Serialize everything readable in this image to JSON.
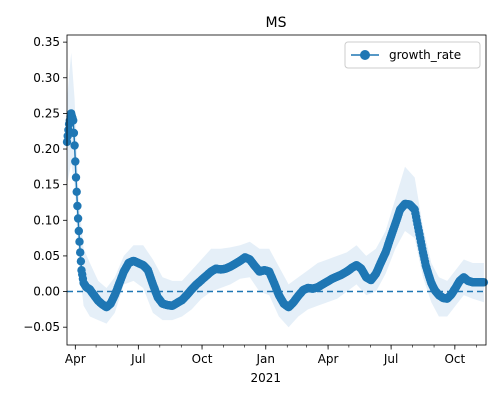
{
  "chart_data": {
    "type": "line",
    "title": "MS",
    "xlabel": "",
    "ylabel": "",
    "ylim": [
      -0.075,
      0.36
    ],
    "x_range": [
      "2020-03-20",
      "2021-11-15"
    ],
    "x_ticks": [
      {
        "date": "2020-04-01",
        "label": "Apr",
        "sublabel": ""
      },
      {
        "date": "2020-07-01",
        "label": "Jul",
        "sublabel": ""
      },
      {
        "date": "2020-10-01",
        "label": "Oct",
        "sublabel": ""
      },
      {
        "date": "2021-01-01",
        "label": "Jan",
        "sublabel": "2021"
      },
      {
        "date": "2021-04-01",
        "label": "Apr",
        "sublabel": ""
      },
      {
        "date": "2021-07-01",
        "label": "Jul",
        "sublabel": ""
      },
      {
        "date": "2021-10-01",
        "label": "Oct",
        "sublabel": ""
      }
    ],
    "y_ticks": [
      -0.05,
      0.0,
      0.05,
      0.1,
      0.15,
      0.2,
      0.25,
      0.3,
      0.35
    ],
    "y_tick_labels": [
      "−0.05",
      "0.00",
      "0.05",
      "0.10",
      "0.15",
      "0.20",
      "0.25",
      "0.30",
      "0.35"
    ],
    "reference_line": {
      "y": 0.0,
      "style": "dashed",
      "color": "#1f77b4"
    },
    "legend": {
      "position": "top-right",
      "entries": [
        "growth_rate"
      ]
    },
    "colors": {
      "series": "#1f77b4",
      "band": "#c6dbef"
    },
    "series": [
      {
        "name": "growth_rate",
        "points": [
          [
            "2020-03-20",
            0.21
          ],
          [
            "2020-03-23",
            0.235
          ],
          [
            "2020-03-26",
            0.25
          ],
          [
            "2020-03-29",
            0.24
          ],
          [
            "2020-03-31",
            0.205
          ],
          [
            "2020-04-02",
            0.16
          ],
          [
            "2020-04-04",
            0.12
          ],
          [
            "2020-04-06",
            0.085
          ],
          [
            "2020-04-08",
            0.055
          ],
          [
            "2020-04-10",
            0.03
          ],
          [
            "2020-04-13",
            0.012
          ],
          [
            "2020-04-17",
            0.006
          ],
          [
            "2020-04-22",
            0.003
          ],
          [
            "2020-04-28",
            -0.005
          ],
          [
            "2020-05-04",
            -0.013
          ],
          [
            "2020-05-10",
            -0.018
          ],
          [
            "2020-05-16",
            -0.022
          ],
          [
            "2020-05-22",
            -0.017
          ],
          [
            "2020-05-28",
            -0.005
          ],
          [
            "2020-06-03",
            0.01
          ],
          [
            "2020-06-10",
            0.028
          ],
          [
            "2020-06-17",
            0.04
          ],
          [
            "2020-06-24",
            0.043
          ],
          [
            "2020-07-01",
            0.04
          ],
          [
            "2020-07-08",
            0.037
          ],
          [
            "2020-07-15",
            0.03
          ],
          [
            "2020-07-22",
            0.01
          ],
          [
            "2020-07-29",
            -0.008
          ],
          [
            "2020-08-05",
            -0.017
          ],
          [
            "2020-08-12",
            -0.019
          ],
          [
            "2020-08-19",
            -0.02
          ],
          [
            "2020-08-26",
            -0.016
          ],
          [
            "2020-09-02",
            -0.012
          ],
          [
            "2020-09-09",
            -0.005
          ],
          [
            "2020-09-16",
            0.003
          ],
          [
            "2020-09-23",
            0.01
          ],
          [
            "2020-09-30",
            0.016
          ],
          [
            "2020-10-07",
            0.022
          ],
          [
            "2020-10-14",
            0.028
          ],
          [
            "2020-10-21",
            0.032
          ],
          [
            "2020-10-28",
            0.031
          ],
          [
            "2020-11-04",
            0.032
          ],
          [
            "2020-11-11",
            0.035
          ],
          [
            "2020-11-18",
            0.039
          ],
          [
            "2020-11-25",
            0.043
          ],
          [
            "2020-12-02",
            0.048
          ],
          [
            "2020-12-09",
            0.045
          ],
          [
            "2020-12-16",
            0.036
          ],
          [
            "2020-12-23",
            0.028
          ],
          [
            "2020-12-30",
            0.03
          ],
          [
            "2021-01-06",
            0.028
          ],
          [
            "2021-01-13",
            0.012
          ],
          [
            "2021-01-20",
            -0.005
          ],
          [
            "2021-01-27",
            -0.017
          ],
          [
            "2021-02-03",
            -0.022
          ],
          [
            "2021-02-10",
            -0.015
          ],
          [
            "2021-02-17",
            -0.006
          ],
          [
            "2021-02-24",
            0.002
          ],
          [
            "2021-03-03",
            0.005
          ],
          [
            "2021-03-10",
            0.004
          ],
          [
            "2021-03-17",
            0.006
          ],
          [
            "2021-03-24",
            0.01
          ],
          [
            "2021-03-31",
            0.014
          ],
          [
            "2021-04-07",
            0.018
          ],
          [
            "2021-04-14",
            0.021
          ],
          [
            "2021-04-21",
            0.024
          ],
          [
            "2021-04-28",
            0.028
          ],
          [
            "2021-05-05",
            0.033
          ],
          [
            "2021-05-12",
            0.037
          ],
          [
            "2021-05-19",
            0.032
          ],
          [
            "2021-05-26",
            0.02
          ],
          [
            "2021-06-02",
            0.016
          ],
          [
            "2021-06-09",
            0.025
          ],
          [
            "2021-06-16",
            0.04
          ],
          [
            "2021-06-23",
            0.055
          ],
          [
            "2021-06-30",
            0.075
          ],
          [
            "2021-07-07",
            0.095
          ],
          [
            "2021-07-14",
            0.115
          ],
          [
            "2021-07-21",
            0.123
          ],
          [
            "2021-07-28",
            0.122
          ],
          [
            "2021-08-04",
            0.115
          ],
          [
            "2021-08-08",
            0.095
          ],
          [
            "2021-08-12",
            0.075
          ],
          [
            "2021-08-16",
            0.055
          ],
          [
            "2021-08-20",
            0.037
          ],
          [
            "2021-08-24",
            0.024
          ],
          [
            "2021-08-28",
            0.012
          ],
          [
            "2021-09-02",
            0.002
          ],
          [
            "2021-09-08",
            -0.005
          ],
          [
            "2021-09-14",
            -0.009
          ],
          [
            "2021-09-20",
            -0.01
          ],
          [
            "2021-09-26",
            -0.004
          ],
          [
            "2021-10-02",
            0.005
          ],
          [
            "2021-10-08",
            0.015
          ],
          [
            "2021-10-14",
            0.02
          ],
          [
            "2021-10-20",
            0.015
          ],
          [
            "2021-10-27",
            0.013
          ],
          [
            "2021-11-03",
            0.013
          ],
          [
            "2021-11-12",
            0.013
          ]
        ],
        "band": [
          [
            "2020-03-20",
            0.15,
            0.27
          ],
          [
            "2020-03-26",
            0.18,
            0.335
          ],
          [
            "2020-03-31",
            0.15,
            0.27
          ],
          [
            "2020-04-06",
            0.04,
            0.13
          ],
          [
            "2020-04-13",
            -0.02,
            0.06
          ],
          [
            "2020-04-22",
            -0.035,
            0.04
          ],
          [
            "2020-05-04",
            -0.04,
            0.015
          ],
          [
            "2020-05-16",
            -0.045,
            0.005
          ],
          [
            "2020-05-28",
            -0.03,
            0.02
          ],
          [
            "2020-06-10",
            0.01,
            0.05
          ],
          [
            "2020-06-24",
            0.015,
            0.065
          ],
          [
            "2020-07-08",
            0.005,
            0.065
          ],
          [
            "2020-07-22",
            -0.03,
            0.045
          ],
          [
            "2020-08-05",
            -0.04,
            0.02
          ],
          [
            "2020-08-19",
            -0.04,
            0.015
          ],
          [
            "2020-09-02",
            -0.035,
            0.015
          ],
          [
            "2020-09-16",
            -0.025,
            0.03
          ],
          [
            "2020-09-30",
            -0.01,
            0.045
          ],
          [
            "2020-10-14",
            0.0,
            0.06
          ],
          [
            "2020-10-28",
            0.005,
            0.06
          ],
          [
            "2020-11-11",
            0.01,
            0.062
          ],
          [
            "2020-11-25",
            0.018,
            0.065
          ],
          [
            "2020-12-09",
            0.02,
            0.07
          ],
          [
            "2020-12-23",
            0.0,
            0.06
          ],
          [
            "2021-01-06",
            -0.005,
            0.06
          ],
          [
            "2021-01-20",
            -0.035,
            0.035
          ],
          [
            "2021-02-03",
            -0.05,
            0.01
          ],
          [
            "2021-02-17",
            -0.035,
            0.02
          ],
          [
            "2021-03-03",
            -0.025,
            0.03
          ],
          [
            "2021-03-17",
            -0.02,
            0.04
          ],
          [
            "2021-03-31",
            -0.015,
            0.045
          ],
          [
            "2021-04-14",
            -0.01,
            0.05
          ],
          [
            "2021-04-28",
            0.0,
            0.055
          ],
          [
            "2021-05-12",
            0.01,
            0.065
          ],
          [
            "2021-05-26",
            -0.005,
            0.05
          ],
          [
            "2021-06-09",
            0.0,
            0.06
          ],
          [
            "2021-06-23",
            0.025,
            0.085
          ],
          [
            "2021-07-07",
            0.06,
            0.13
          ],
          [
            "2021-07-21",
            0.085,
            0.175
          ],
          [
            "2021-08-04",
            0.075,
            0.16
          ],
          [
            "2021-08-16",
            0.02,
            0.09
          ],
          [
            "2021-08-28",
            -0.015,
            0.04
          ],
          [
            "2021-09-08",
            -0.035,
            0.02
          ],
          [
            "2021-09-20",
            -0.035,
            0.015
          ],
          [
            "2021-10-02",
            -0.02,
            0.03
          ],
          [
            "2021-10-14",
            -0.005,
            0.045
          ],
          [
            "2021-10-27",
            -0.01,
            0.04
          ],
          [
            "2021-11-12",
            -0.015,
            0.04
          ]
        ]
      }
    ]
  }
}
